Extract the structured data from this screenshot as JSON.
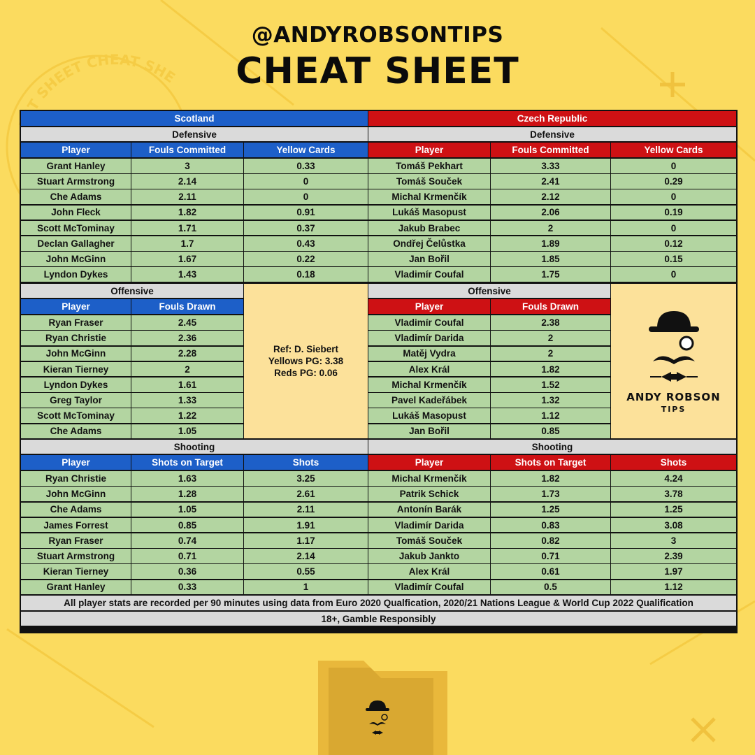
{
  "header": {
    "handle": "@ANDYROBSONTIPS",
    "title": "CHEAT SHEET"
  },
  "colors": {
    "background": "#FBDB5F",
    "scotland": "#1D5FC8",
    "czech": "#CE1114",
    "row": "#B3D5A1",
    "section": "#DADADA",
    "info": "#FCE19A"
  },
  "labels": {
    "defensive": "Defensive",
    "offensive": "Offensive",
    "shooting": "Shooting",
    "player": "Player",
    "fouls_committed": "Fouls Committed",
    "yellow_cards": "Yellow Cards",
    "fouls_drawn": "Fouls Drawn",
    "shots_on_target": "Shots on Target",
    "shots": "Shots"
  },
  "teams": [
    {
      "name": "Scotland",
      "defensive": [
        [
          "Grant Hanley",
          "3",
          "0.33"
        ],
        [
          "Stuart Armstrong",
          "2.14",
          "0"
        ],
        [
          "Che Adams",
          "2.11",
          "0"
        ],
        [
          "John Fleck",
          "1.82",
          "0.91"
        ],
        [
          "Scott McTominay",
          "1.71",
          "0.37"
        ],
        [
          "Declan Gallagher",
          "1.7",
          "0.43"
        ],
        [
          "John McGinn",
          "1.67",
          "0.22"
        ],
        [
          "Lyndon Dykes",
          "1.43",
          "0.18"
        ]
      ],
      "offensive": [
        [
          "Ryan Fraser",
          "2.45"
        ],
        [
          "Ryan Christie",
          "2.36"
        ],
        [
          "John McGinn",
          "2.28"
        ],
        [
          "Kieran Tierney",
          "2"
        ],
        [
          "Lyndon Dykes",
          "1.61"
        ],
        [
          "Greg Taylor",
          "1.33"
        ],
        [
          "Scott McTominay",
          "1.22"
        ],
        [
          "Che Adams",
          "1.05"
        ]
      ],
      "shooting": [
        [
          "Ryan Christie",
          "1.63",
          "3.25"
        ],
        [
          "John McGinn",
          "1.28",
          "2.61"
        ],
        [
          "Che Adams",
          "1.05",
          "2.11"
        ],
        [
          "James Forrest",
          "0.85",
          "1.91"
        ],
        [
          "Ryan Fraser",
          "0.74",
          "1.17"
        ],
        [
          "Stuart Armstrong",
          "0.71",
          "2.14"
        ],
        [
          "Kieran Tierney",
          "0.36",
          "0.55"
        ],
        [
          "Grant Hanley",
          "0.33",
          "1"
        ]
      ]
    },
    {
      "name": "Czech Republic",
      "defensive": [
        [
          "Tomáš Pekhart",
          "3.33",
          "0"
        ],
        [
          "Tomáš Souček",
          "2.41",
          "0.29"
        ],
        [
          "Michal Krmenčík",
          "2.12",
          "0"
        ],
        [
          "Lukáš Masopust",
          "2.06",
          "0.19"
        ],
        [
          "Jakub Brabec",
          "2",
          "0"
        ],
        [
          "Ondřej Čelůstka",
          "1.89",
          "0.12"
        ],
        [
          "Jan Bořil",
          "1.85",
          "0.15"
        ],
        [
          "Vladimír Coufal",
          "1.75",
          "0"
        ]
      ],
      "offensive": [
        [
          "Vladimír Coufal",
          "2.38"
        ],
        [
          "Vladimír Darida",
          "2"
        ],
        [
          "Matěj Vydra",
          "2"
        ],
        [
          "Alex Král",
          "1.82"
        ],
        [
          "Michal Krmenčík",
          "1.52"
        ],
        [
          "Pavel Kadeřábek",
          "1.32"
        ],
        [
          "Lukáš Masopust",
          "1.12"
        ],
        [
          "Jan Bořil",
          "0.85"
        ]
      ],
      "shooting": [
        [
          "Michal Krmenčík",
          "1.82",
          "4.24"
        ],
        [
          "Patrik Schick",
          "1.73",
          "3.78"
        ],
        [
          "Antonín Barák",
          "1.25",
          "1.25"
        ],
        [
          "Vladimír Darida",
          "0.83",
          "3.08"
        ],
        [
          "Tomáš Souček",
          "0.82",
          "3"
        ],
        [
          "Jakub Jankto",
          "0.71",
          "2.39"
        ],
        [
          "Alex Král",
          "0.61",
          "1.97"
        ],
        [
          "Vladimír Coufal",
          "0.5",
          "1.12"
        ]
      ]
    }
  ],
  "referee": {
    "line1": "Ref: D. Siebert",
    "line2": "Yellows PG: 3.38",
    "line3": "Reds PG: 0.06"
  },
  "brand": {
    "name": "ANDY ROBSON",
    "sub": "TIPS"
  },
  "watermark": "EAT SHEET CHEAT SHEET",
  "footer": {
    "note": "All player stats are recorded per 90 minutes using data from Euro 2020 Qualfication, 2020/21 Nations League & World Cup 2022 Qualification",
    "disclaimer": "18+, Gamble Responsibly"
  }
}
